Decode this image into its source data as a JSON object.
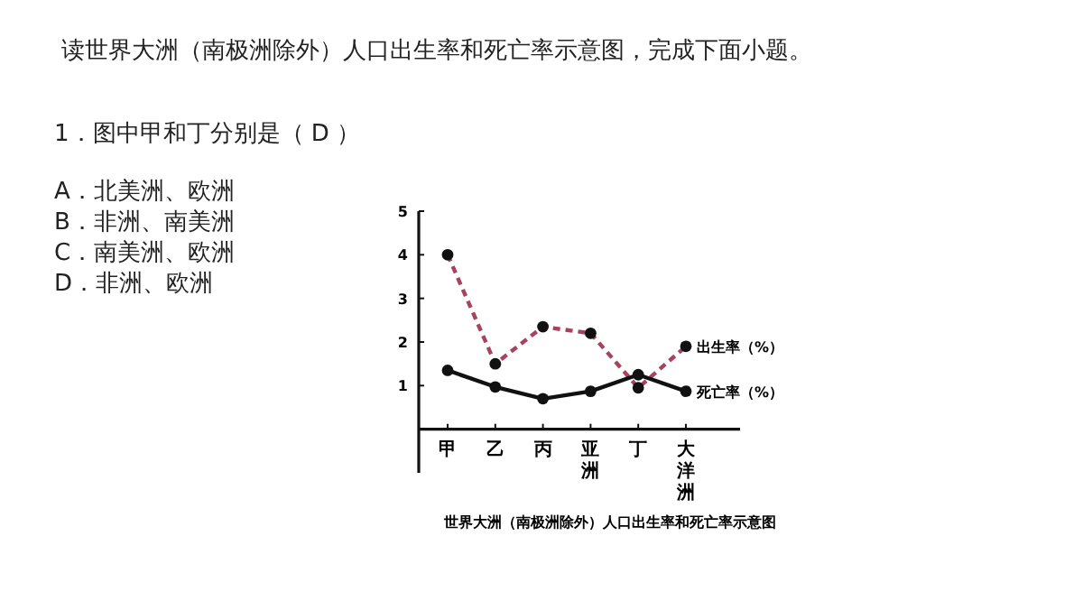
{
  "chart_data": {
    "type": "line",
    "title": "世界大洲（南极洲除外）人口出生率和死亡率示意图",
    "categories": [
      "甲",
      "乙",
      "丙",
      "亚洲",
      "丁",
      "大洋洲"
    ],
    "series": [
      {
        "name": "出生率（%）",
        "color": "#a8435f",
        "line_style": "dashed",
        "values": [
          4.0,
          1.5,
          2.35,
          2.2,
          0.95,
          1.9
        ]
      },
      {
        "name": "死亡率（%）",
        "color": "#111111",
        "line_style": "solid",
        "values": [
          1.35,
          0.97,
          0.7,
          0.87,
          1.25,
          0.87
        ]
      }
    ],
    "ylim": [
      -1,
      5
    ],
    "yticks": [
      1,
      2,
      3,
      4,
      5
    ],
    "marker": "circle",
    "legend": false,
    "annotations": [
      "读世界大洲（南极洲除外）人口出生率和死亡率示意图，完成下面小题。",
      "1．图中甲和丁分别是（ D ）",
      "A．北美洲、欧洲",
      "B．非洲、南美洲",
      "C．南美洲、欧洲",
      "D．非洲、欧洲"
    ]
  }
}
